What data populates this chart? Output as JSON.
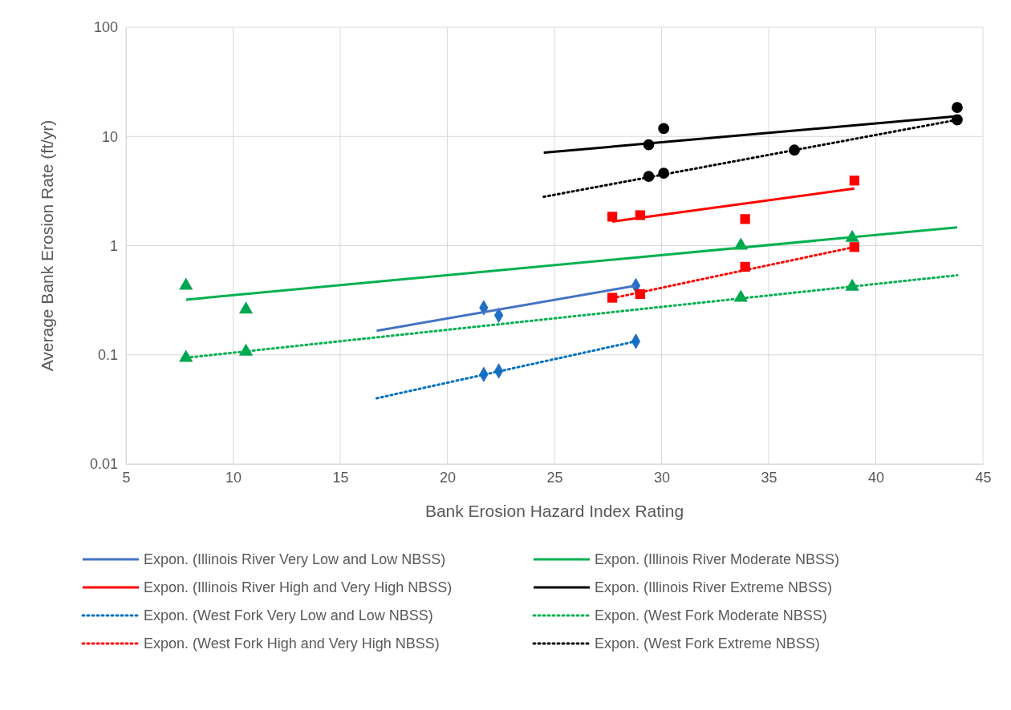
{
  "chart_data": {
    "type": "scatter",
    "xlabel": "Bank Erosion Hazard Index Rating",
    "ylabel": "Average Bank Erosion Rate (ft/yr)",
    "xlim": [
      5,
      45
    ],
    "xticks": [
      5,
      10,
      15,
      20,
      25,
      30,
      35,
      40,
      45
    ],
    "ylim": [
      0.01,
      100
    ],
    "yticks": [
      0.01,
      0.1,
      1,
      10,
      100
    ],
    "log": true,
    "grid": true,
    "legend": "bottom",
    "series": [
      {
        "marker": "diamond",
        "color": "#1f6fc5",
        "x": [
          21.7,
          22.4,
          28.8
        ],
        "values": [
          0.27,
          0.23,
          0.43
        ]
      },
      {
        "marker": "triangle",
        "color": "#00a650",
        "x": [
          7.8,
          10.6,
          33.7,
          38.9
        ],
        "values": [
          0.43,
          0.26,
          1.0,
          1.18
        ]
      },
      {
        "marker": "square",
        "color": "#ff0000",
        "x": [
          27.7,
          29,
          33.9,
          39
        ],
        "values": [
          1.84,
          1.9,
          1.75,
          3.94
        ]
      },
      {
        "marker": "circle",
        "color": "#000000",
        "x": [
          29.4,
          30.1,
          36.2,
          43.8
        ],
        "values": [
          8.4,
          11.8,
          7.5,
          18.4
        ]
      },
      {
        "marker": "diamond",
        "color": "#1f6fc5",
        "x": [
          21.7,
          22.4,
          28.8
        ],
        "values": [
          0.066,
          0.071,
          0.133
        ]
      },
      {
        "marker": "triangle",
        "color": "#00a650",
        "x": [
          7.8,
          10.6,
          33.7,
          38.9
        ],
        "values": [
          0.094,
          0.107,
          0.333,
          0.42
        ]
      },
      {
        "marker": "square",
        "color": "#ff0000",
        "x": [
          27.7,
          29,
          33.9,
          39
        ],
        "values": [
          0.333,
          0.36,
          0.64,
          0.97
        ]
      },
      {
        "marker": "circle",
        "color": "#000000",
        "x": [
          29.4,
          30.1,
          43.8
        ],
        "values": [
          4.3,
          4.6,
          14.2
        ]
      },
      {
        "type": "line",
        "name": "Expon. (Illinois River Very Low and Low NBSS)",
        "color": "#4472c4",
        "line_style": "solid",
        "x": [
          16.7,
          28.8
        ],
        "values": [
          0.166,
          0.43
        ]
      },
      {
        "type": "line",
        "name": "Expon. (Illinois River Moderate NBSS)",
        "color": "#00b050",
        "line_style": "solid",
        "x": [
          7.8,
          43.8
        ],
        "values": [
          0.32,
          1.47
        ]
      },
      {
        "type": "line",
        "name": "Expon. (Illinois River High and Very High NBSS)",
        "color": "#ff0000",
        "line_style": "solid",
        "x": [
          27.7,
          39
        ],
        "values": [
          1.66,
          3.33
        ]
      },
      {
        "type": "line",
        "name": "Expon. (Illinois River Extreme NBSS)",
        "color": "#000000",
        "line_style": "solid",
        "x": [
          24.5,
          43.8
        ],
        "values": [
          7.1,
          15.3
        ]
      },
      {
        "type": "line",
        "name": "Expon. (West Fork Very Low and Low NBSS)",
        "color": "#0070c0",
        "line_style": "dotted",
        "x": [
          16.7,
          28.8
        ],
        "values": [
          0.04,
          0.133
        ]
      },
      {
        "type": "line",
        "name": "Expon. (West Fork Moderate NBSS)",
        "color": "#00b050",
        "line_style": "dotted",
        "x": [
          7.8,
          43.8
        ],
        "values": [
          0.094,
          0.535
        ]
      },
      {
        "type": "line",
        "name": "Expon. (West Fork High and Very High NBSS)",
        "color": "#ff0000",
        "line_style": "dotted",
        "x": [
          27.7,
          39
        ],
        "values": [
          0.33,
          0.97
        ]
      },
      {
        "type": "line",
        "name": "Expon. (West Fork Extreme NBSS)",
        "color": "#000000",
        "line_style": "dotted",
        "x": [
          24.5,
          43.8
        ],
        "values": [
          2.8,
          14.2
        ]
      }
    ]
  }
}
